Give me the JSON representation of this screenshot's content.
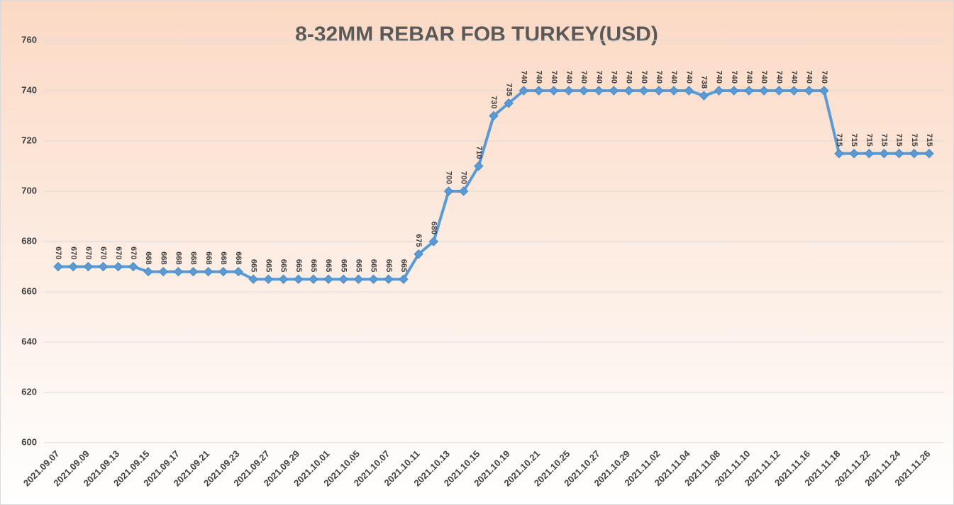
{
  "chart_data": {
    "type": "line",
    "title": "8-32MM REBAR FOB TURKEY(USD)",
    "categories": [
      "2021.09.07",
      null,
      "2021.09.09",
      null,
      "2021.09.13",
      null,
      "2021.09.15",
      null,
      "2021.09.17",
      null,
      "2021.09.21",
      null,
      "2021.09.23",
      null,
      "2021.09.27",
      null,
      "2021.09.29",
      null,
      "2021.10.01",
      null,
      "2021.10.05",
      null,
      "2021.10.07",
      null,
      "2021.10.11",
      null,
      "2021.10.13",
      null,
      "2021.10.15",
      null,
      "2021.10.19",
      null,
      "2021.10.21",
      null,
      "2021.10.25",
      null,
      "2021.10.27",
      null,
      "2021.10.29",
      null,
      "2021.11.02",
      null,
      "2021.11.04",
      null,
      "2021.11.08",
      null,
      "2021.11.10",
      null,
      "2021.11.12",
      null,
      "2021.11.16",
      null,
      "2021.11.18",
      null,
      "2021.11.22",
      null,
      "2021.11.24",
      null,
      "2021.11.26"
    ],
    "series": [
      {
        "name": "8-32MM REBAR FOB TURKEY(USD)",
        "color": "#5b9bd5",
        "values": [
          670,
          670,
          670,
          670,
          670,
          670,
          668,
          668,
          668,
          668,
          668,
          668,
          668,
          665,
          665,
          665,
          665,
          665,
          665,
          665,
          665,
          665,
          665,
          665,
          675,
          680,
          700,
          700,
          710,
          730,
          735,
          740,
          740,
          740,
          740,
          740,
          740,
          740,
          740,
          740,
          740,
          740,
          740,
          738,
          740,
          740,
          740,
          740,
          740,
          740,
          740,
          740,
          715,
          715,
          715,
          715,
          715,
          715,
          715
        ]
      }
    ],
    "ylim": [
      600,
      760
    ],
    "yticks": [
      600,
      620,
      640,
      660,
      680,
      700,
      720,
      740,
      760
    ],
    "grid": true
  }
}
